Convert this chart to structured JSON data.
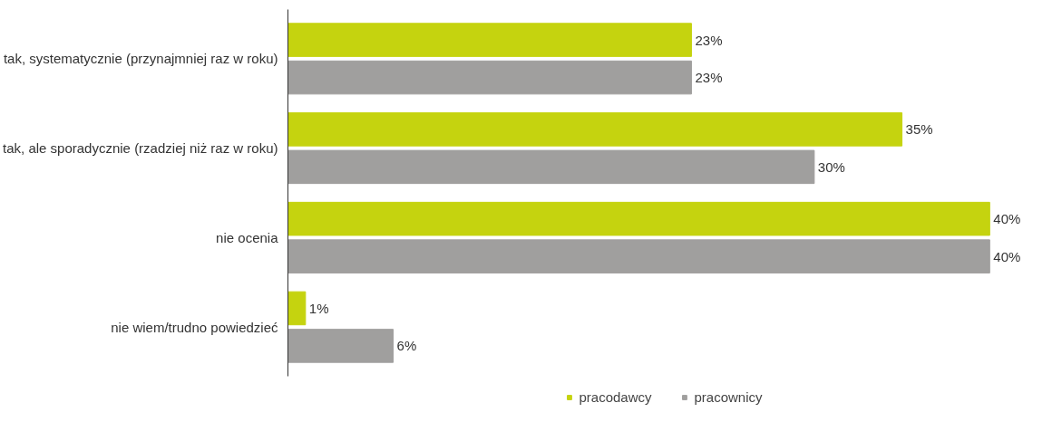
{
  "chart_data": {
    "type": "bar",
    "orientation": "horizontal",
    "categories": [
      "tak, systematycznie (przynajmniej raz w roku)",
      "tak, ale sporadycznie (rzadziej niż raz w roku)",
      "nie ocenia",
      "nie wiem/trudno powiedzieć"
    ],
    "series": [
      {
        "name": "pracodawcy",
        "color": "#c5d30f",
        "values": [
          23,
          35,
          40,
          1
        ],
        "value_labels": [
          "23%",
          "35%",
          "40%",
          "1%"
        ]
      },
      {
        "name": "pracownicy",
        "color": "#a09f9e",
        "values": [
          23,
          30,
          40,
          6
        ],
        "value_labels": [
          "23%",
          "30%",
          "40%",
          "6%"
        ]
      }
    ],
    "legend": "bottom",
    "grid": false
  }
}
